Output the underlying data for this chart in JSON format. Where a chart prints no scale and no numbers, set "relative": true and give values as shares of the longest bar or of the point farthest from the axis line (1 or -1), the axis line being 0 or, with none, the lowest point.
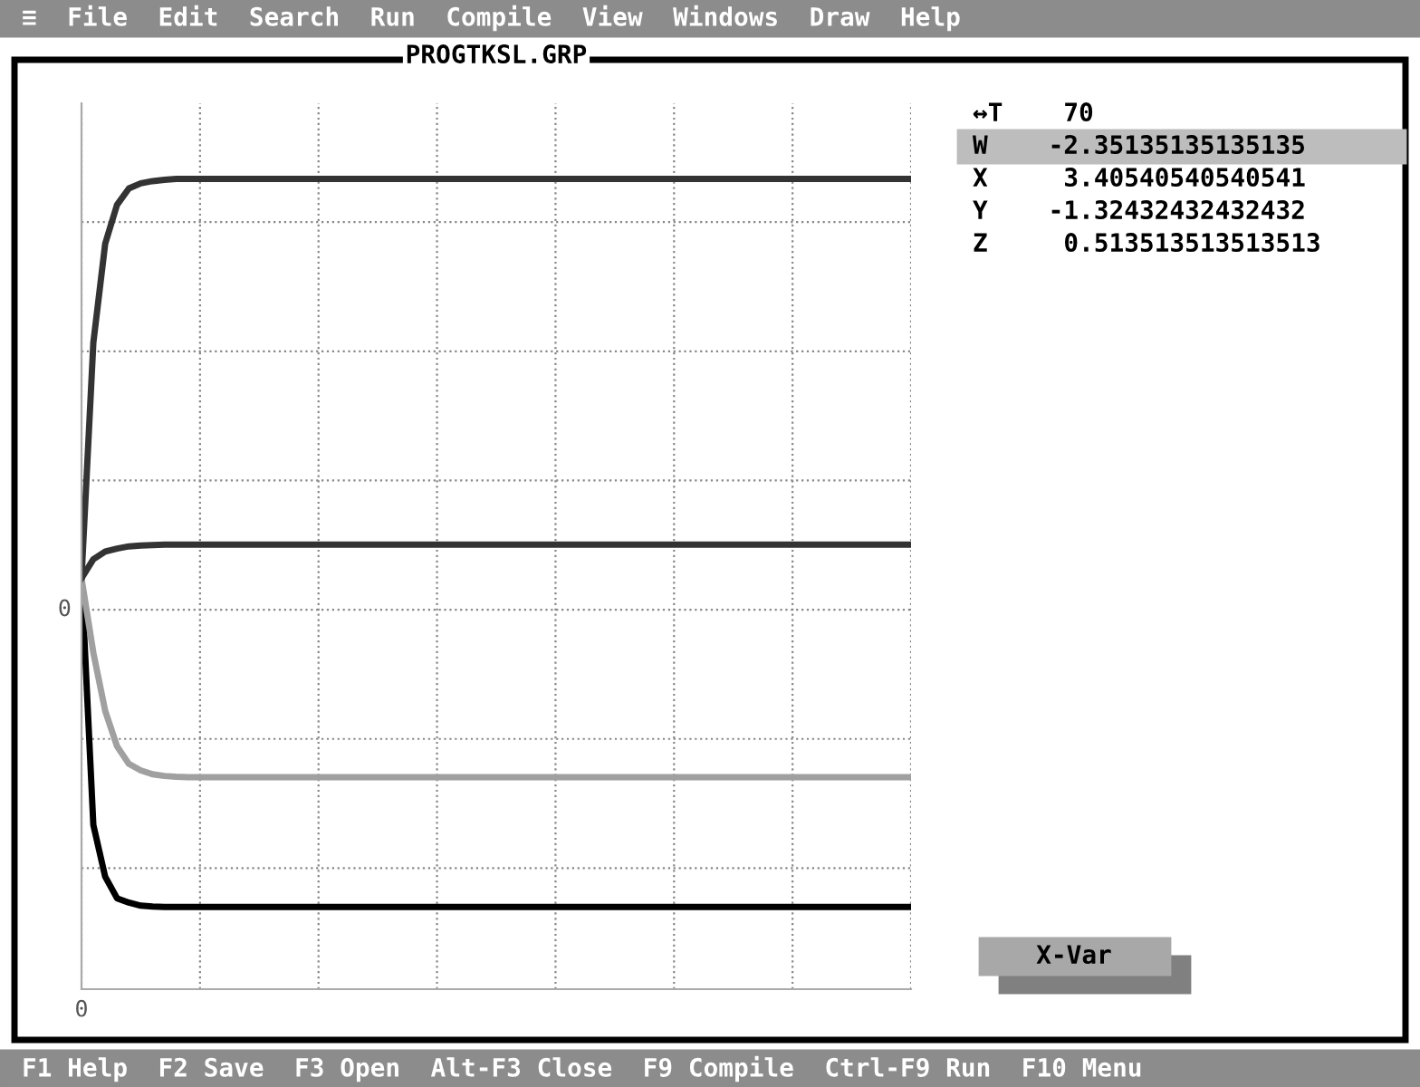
{
  "chart_data": {
    "type": "line",
    "title": "PROGTKSL.GRP",
    "relative": true,
    "grid": true,
    "line_style": "solid",
    "marker": "none",
    "categories": [
      null,
      null,
      null,
      null,
      null,
      null,
      null,
      null,
      null,
      null,
      null,
      null,
      null,
      null,
      null,
      null,
      null,
      null,
      null,
      null,
      null,
      null,
      null,
      null,
      null,
      null,
      null,
      null,
      null,
      null,
      null,
      null,
      null,
      null,
      null,
      null,
      null,
      null,
      null,
      null,
      null,
      null,
      null,
      null,
      null,
      null,
      null,
      null,
      null,
      null,
      null,
      null,
      null,
      null,
      null,
      null,
      null,
      null,
      null,
      null,
      null,
      null,
      null,
      null,
      null,
      null,
      null,
      null,
      null,
      null,
      null
    ],
    "series": [
      {
        "color": "#000000",
        "values": [
          0.073,
          -0.5,
          -0.62,
          -0.67,
          -0.68,
          -0.687,
          -0.689,
          -0.69,
          -0.69,
          -0.69,
          -0.69,
          -0.69,
          -0.69,
          -0.69,
          -0.69,
          -0.69,
          -0.69,
          -0.69,
          -0.69,
          -0.69,
          -0.69,
          -0.69,
          -0.69,
          -0.69,
          -0.69,
          -0.69,
          -0.69,
          -0.69,
          -0.69,
          -0.69,
          -0.69,
          -0.69,
          -0.69,
          -0.69,
          -0.69,
          -0.69,
          -0.69,
          -0.69,
          -0.69,
          -0.69,
          -0.69,
          -0.69,
          -0.69,
          -0.69,
          -0.69,
          -0.69,
          -0.69,
          -0.69,
          -0.69,
          -0.69,
          -0.69,
          -0.69,
          -0.69,
          -0.69,
          -0.69,
          -0.69,
          -0.69,
          -0.69,
          -0.69,
          -0.69,
          -0.69,
          -0.69,
          -0.69,
          -0.69,
          -0.69,
          -0.69,
          -0.69,
          -0.69,
          -0.69,
          -0.69,
          -0.69
        ]
      },
      {
        "color": "#333333",
        "values": [
          0.073,
          0.62,
          0.85,
          0.94,
          0.978,
          0.99,
          0.995,
          0.998,
          1,
          1,
          1,
          1,
          1,
          1,
          1,
          1,
          1,
          1,
          1,
          1,
          1,
          1,
          1,
          1,
          1,
          1,
          1,
          1,
          1,
          1,
          1,
          1,
          1,
          1,
          1,
          1,
          1,
          1,
          1,
          1,
          1,
          1,
          1,
          1,
          1,
          1,
          1,
          1,
          1,
          1,
          1,
          1,
          1,
          1,
          1,
          1,
          1,
          1,
          1,
          1,
          1,
          1,
          1,
          1,
          1,
          1,
          1,
          1,
          1,
          1,
          1
        ]
      },
      {
        "color": "#a0a0a0",
        "values": [
          0.073,
          -0.1,
          -0.235,
          -0.317,
          -0.358,
          -0.373,
          -0.382,
          -0.386,
          -0.388,
          -0.389,
          -0.389,
          -0.389,
          -0.389,
          -0.389,
          -0.389,
          -0.389,
          -0.389,
          -0.389,
          -0.389,
          -0.389,
          -0.389,
          -0.389,
          -0.389,
          -0.389,
          -0.389,
          -0.389,
          -0.389,
          -0.389,
          -0.389,
          -0.389,
          -0.389,
          -0.389,
          -0.389,
          -0.389,
          -0.389,
          -0.389,
          -0.389,
          -0.389,
          -0.389,
          -0.389,
          -0.389,
          -0.389,
          -0.389,
          -0.389,
          -0.389,
          -0.389,
          -0.389,
          -0.389,
          -0.389,
          -0.389,
          -0.389,
          -0.389,
          -0.389,
          -0.389,
          -0.389,
          -0.389,
          -0.389,
          -0.389,
          -0.389,
          -0.389,
          -0.389,
          -0.389,
          -0.389,
          -0.389,
          -0.389,
          -0.389,
          -0.389,
          -0.389,
          -0.389,
          -0.389,
          -0.389
        ]
      },
      {
        "color": "#333333",
        "values": [
          0.073,
          0.117,
          0.135,
          0.142,
          0.147,
          0.149,
          0.15,
          0.151,
          0.151,
          0.151,
          0.151,
          0.151,
          0.151,
          0.151,
          0.151,
          0.151,
          0.151,
          0.151,
          0.151,
          0.151,
          0.151,
          0.151,
          0.151,
          0.151,
          0.151,
          0.151,
          0.151,
          0.151,
          0.151,
          0.151,
          0.151,
          0.151,
          0.151,
          0.151,
          0.151,
          0.151,
          0.151,
          0.151,
          0.151,
          0.151,
          0.151,
          0.151,
          0.151,
          0.151,
          0.151,
          0.151,
          0.151,
          0.151,
          0.151,
          0.151,
          0.151,
          0.151,
          0.151,
          0.151,
          0.151,
          0.151,
          0.151,
          0.151,
          0.151,
          0.151,
          0.151,
          0.151,
          0.151,
          0.151,
          0.151,
          0.151,
          0.151,
          0.151,
          0.151,
          0.151,
          0.151
        ]
      }
    ],
    "annotations": [
      "≡  File  Edit  Search  Run  Compile  View  Windows  Draw  Help",
      "F1 Help  F2 Save  F3 Open  Alt-F3 Close  F9 Compile  Ctrl-F9 Run  F10 Menu",
      "X-Var",
      "↔T    70",
      "W    -2.35135135135135",
      "X     3.40540540540541",
      "Y    -1.32432432432432",
      "Z     0.513513513513513",
      "0",
      "0"
    ]
  }
}
